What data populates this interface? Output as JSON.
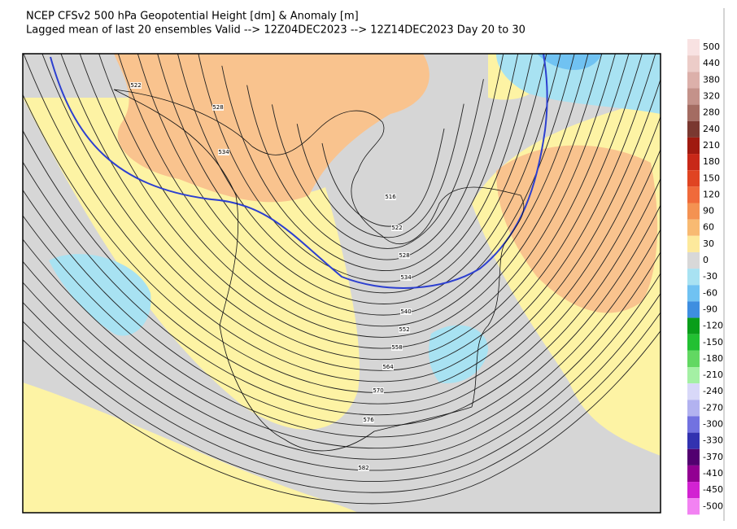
{
  "header": {
    "title": "NCEP CFSv2 500 hPa Geopotential Height [dm] & Anomaly [m]",
    "subtitle": "Lagged mean of last 20 ensembles Valid --> 12Z04DEC2023 --> 12Z14DEC2023  Day 20 to 30"
  },
  "colorbar": [
    {
      "label": "500",
      "color": "#f8e2e2"
    },
    {
      "label": "440",
      "color": "#ecccc8"
    },
    {
      "label": "380",
      "color": "#dcb0aa"
    },
    {
      "label": "320",
      "color": "#c4928a"
    },
    {
      "label": "280",
      "color": "#a46c62"
    },
    {
      "label": "240",
      "color": "#7a3830"
    },
    {
      "label": "210",
      "color": "#a01a10"
    },
    {
      "label": "180",
      "color": "#c82818"
    },
    {
      "label": "150",
      "color": "#e04422"
    },
    {
      "label": "120",
      "color": "#f06a3a"
    },
    {
      "label": "90",
      "color": "#f49252"
    },
    {
      "label": "60",
      "color": "#f8ba72"
    },
    {
      "label": "30",
      "color": "#fde99c"
    },
    {
      "label": "0",
      "color": "#d8d8d8"
    },
    {
      "label": "-30",
      "color": "#a8e2f2"
    },
    {
      "label": "-60",
      "color": "#70c2f2"
    },
    {
      "label": "-90",
      "color": "#3e8ee0"
    },
    {
      "label": "-120",
      "color": "#0a9e1a"
    },
    {
      "label": "-150",
      "color": "#22c032"
    },
    {
      "label": "-180",
      "color": "#62d862"
    },
    {
      "label": "-210",
      "color": "#a4f0a4"
    },
    {
      "label": "-240",
      "color": "#d8d8f8"
    },
    {
      "label": "-270",
      "color": "#b2b2f0"
    },
    {
      "label": "-300",
      "color": "#7272e0"
    },
    {
      "label": "-330",
      "color": "#3232b0"
    },
    {
      "label": "-370",
      "color": "#520070"
    },
    {
      "label": "-410",
      "color": "#920092"
    },
    {
      "label": "-450",
      "color": "#d222d2"
    },
    {
      "label": "-500",
      "color": "#f282f2"
    }
  ],
  "contour_labels": [
    "522",
    "528",
    "534",
    "516",
    "522",
    "528",
    "534",
    "540",
    "552",
    "558",
    "564",
    "570",
    "576",
    "582"
  ]
}
